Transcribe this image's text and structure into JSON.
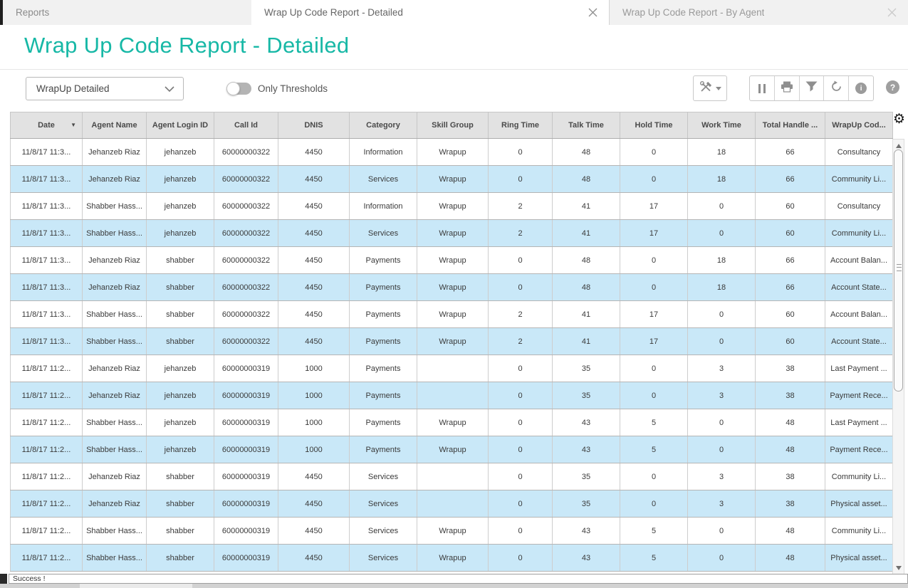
{
  "tabs": [
    {
      "label": "Reports"
    },
    {
      "label": "Wrap Up Code Report - Detailed"
    },
    {
      "label": "Wrap Up Code Report - By Agent"
    }
  ],
  "page": {
    "title": "Wrap Up Code Report - Detailed",
    "status": "Success !"
  },
  "controls": {
    "view_selector_value": "WrapUp Detailed",
    "toggle_label": "Only Thresholds"
  },
  "icons": {
    "gear": "⚙",
    "sort_desc": "▼",
    "info": "i",
    "help": "?"
  },
  "colors": {
    "accent": "#17b8a6",
    "row_alt": "#c9e8f8"
  },
  "table": {
    "columns": [
      "Date",
      "Agent Name",
      "Agent Login ID",
      "Call Id",
      "DNIS",
      "Category",
      "Skill Group",
      "Ring Time",
      "Talk Time",
      "Hold Time",
      "Work Time",
      "Total Handle ...",
      "WrapUp Cod..."
    ],
    "rows": [
      [
        "11/8/17 11:3...",
        "Jehanzeb Riaz",
        "jehanzeb",
        "60000000322",
        "4450",
        "Information",
        "Wrapup",
        "0",
        "48",
        "0",
        "18",
        "66",
        "Consultancy"
      ],
      [
        "11/8/17 11:3...",
        "Jehanzeb Riaz",
        "jehanzeb",
        "60000000322",
        "4450",
        "Services",
        "Wrapup",
        "0",
        "48",
        "0",
        "18",
        "66",
        "Community Li..."
      ],
      [
        "11/8/17 11:3...",
        "Shabber Hass...",
        "jehanzeb",
        "60000000322",
        "4450",
        "Information",
        "Wrapup",
        "2",
        "41",
        "17",
        "0",
        "60",
        "Consultancy"
      ],
      [
        "11/8/17 11:3...",
        "Shabber Hass...",
        "jehanzeb",
        "60000000322",
        "4450",
        "Services",
        "Wrapup",
        "2",
        "41",
        "17",
        "0",
        "60",
        "Community Li..."
      ],
      [
        "11/8/17 11:3...",
        "Jehanzeb Riaz",
        "shabber",
        "60000000322",
        "4450",
        "Payments",
        "Wrapup",
        "0",
        "48",
        "0",
        "18",
        "66",
        "Account Balan..."
      ],
      [
        "11/8/17 11:3...",
        "Jehanzeb Riaz",
        "shabber",
        "60000000322",
        "4450",
        "Payments",
        "Wrapup",
        "0",
        "48",
        "0",
        "18",
        "66",
        "Account State..."
      ],
      [
        "11/8/17 11:3...",
        "Shabber Hass...",
        "shabber",
        "60000000322",
        "4450",
        "Payments",
        "Wrapup",
        "2",
        "41",
        "17",
        "0",
        "60",
        "Account Balan..."
      ],
      [
        "11/8/17 11:3...",
        "Shabber Hass...",
        "shabber",
        "60000000322",
        "4450",
        "Payments",
        "Wrapup",
        "2",
        "41",
        "17",
        "0",
        "60",
        "Account State..."
      ],
      [
        "11/8/17 11:2...",
        "Jehanzeb Riaz",
        "jehanzeb",
        "60000000319",
        "1000",
        "Payments",
        "",
        "0",
        "35",
        "0",
        "3",
        "38",
        "Last Payment ..."
      ],
      [
        "11/8/17 11:2...",
        "Jehanzeb Riaz",
        "jehanzeb",
        "60000000319",
        "1000",
        "Payments",
        "",
        "0",
        "35",
        "0",
        "3",
        "38",
        "Payment Rece..."
      ],
      [
        "11/8/17 11:2...",
        "Shabber Hass...",
        "jehanzeb",
        "60000000319",
        "1000",
        "Payments",
        "Wrapup",
        "0",
        "43",
        "5",
        "0",
        "48",
        "Last Payment ..."
      ],
      [
        "11/8/17 11:2...",
        "Shabber Hass...",
        "jehanzeb",
        "60000000319",
        "1000",
        "Payments",
        "Wrapup",
        "0",
        "43",
        "5",
        "0",
        "48",
        "Payment Rece..."
      ],
      [
        "11/8/17 11:2...",
        "Jehanzeb Riaz",
        "shabber",
        "60000000319",
        "4450",
        "Services",
        "",
        "0",
        "35",
        "0",
        "3",
        "38",
        "Community Li..."
      ],
      [
        "11/8/17 11:2...",
        "Jehanzeb Riaz",
        "shabber",
        "60000000319",
        "4450",
        "Services",
        "",
        "0",
        "35",
        "0",
        "3",
        "38",
        "Physical asset..."
      ],
      [
        "11/8/17 11:2...",
        "Shabber Hass...",
        "shabber",
        "60000000319",
        "4450",
        "Services",
        "Wrapup",
        "0",
        "43",
        "5",
        "0",
        "48",
        "Community Li..."
      ],
      [
        "11/8/17 11:2...",
        "Shabber Hass...",
        "shabber",
        "60000000319",
        "4450",
        "Services",
        "Wrapup",
        "0",
        "43",
        "5",
        "0",
        "48",
        "Physical asset..."
      ]
    ]
  }
}
